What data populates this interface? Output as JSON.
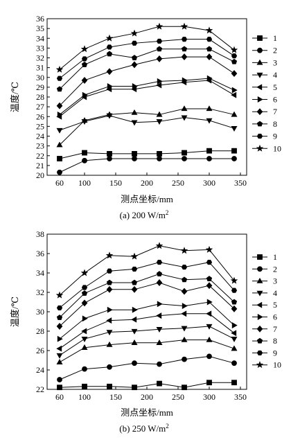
{
  "chart_data": [
    {
      "type": "line",
      "caption_prefix": "(a) 200 W/m",
      "caption_sup": "2",
      "xlabel": "测点坐标/mm",
      "ylabel": "温度/℃",
      "xlim": [
        40,
        360
      ],
      "ylim": [
        20,
        36
      ],
      "xticks": [
        60,
        100,
        150,
        200,
        250,
        300,
        350
      ],
      "yticks": [
        20,
        21,
        22,
        23,
        24,
        25,
        26,
        27,
        28,
        29,
        30,
        31,
        32,
        33,
        34,
        35,
        36
      ],
      "legend_position": "right",
      "x": [
        60,
        100,
        140,
        180,
        220,
        260,
        300,
        340
      ],
      "series": [
        {
          "name": "1",
          "marker": "square",
          "values": [
            21.7,
            22.3,
            22.2,
            22.2,
            22.2,
            22.3,
            22.5,
            22.5
          ]
        },
        {
          "name": "2",
          "marker": "circle",
          "values": [
            20.3,
            21.5,
            21.7,
            21.7,
            21.7,
            21.7,
            21.7,
            21.7
          ]
        },
        {
          "name": "3",
          "marker": "triangle-up",
          "values": [
            23.1,
            25.6,
            26.2,
            26.4,
            26.2,
            26.8,
            26.8,
            26.2
          ]
        },
        {
          "name": "4",
          "marker": "triangle-down",
          "values": [
            24.6,
            25.5,
            26.1,
            25.4,
            25.5,
            25.9,
            25.6,
            24.8
          ]
        },
        {
          "name": "5",
          "marker": "triangle-left",
          "values": [
            26.0,
            28.0,
            28.8,
            28.8,
            29.2,
            29.5,
            29.7,
            28.2
          ]
        },
        {
          "name": "6",
          "marker": "triangle-right",
          "values": [
            26.2,
            28.2,
            29.1,
            29.1,
            29.6,
            29.7,
            29.9,
            28.7
          ]
        },
        {
          "name": "7",
          "marker": "diamond",
          "values": [
            27.1,
            29.7,
            30.6,
            31.3,
            31.9,
            32.1,
            32.1,
            30.4
          ]
        },
        {
          "name": "8",
          "marker": "pentagon",
          "values": [
            28.8,
            31.3,
            32.4,
            32.0,
            32.9,
            32.9,
            32.9,
            31.6
          ]
        },
        {
          "name": "9",
          "marker": "hexagon",
          "values": [
            29.9,
            31.9,
            33.1,
            33.5,
            33.7,
            33.9,
            33.9,
            32.2
          ]
        },
        {
          "name": "10",
          "marker": "star",
          "values": [
            30.8,
            32.9,
            34.0,
            34.5,
            35.2,
            35.2,
            34.8,
            32.8
          ]
        }
      ]
    },
    {
      "type": "line",
      "caption_prefix": "(b) 250 W/m",
      "caption_sup": "2",
      "xlabel": "测点坐标/mm",
      "ylabel": "温度/℃",
      "xlim": [
        40,
        360
      ],
      "ylim": [
        22,
        38
      ],
      "xticks": [
        60,
        100,
        150,
        200,
        250,
        300,
        350
      ],
      "yticks": [
        22,
        24,
        26,
        28,
        30,
        32,
        34,
        36,
        38
      ],
      "legend_position": "right",
      "x": [
        60,
        100,
        140,
        180,
        220,
        260,
        300,
        340
      ],
      "series": [
        {
          "name": "1",
          "marker": "square",
          "values": [
            22.2,
            22.3,
            22.3,
            22.2,
            22.6,
            22.2,
            22.7,
            22.7
          ]
        },
        {
          "name": "2",
          "marker": "circle",
          "values": [
            23.0,
            24.1,
            24.3,
            24.7,
            24.6,
            25.1,
            25.4,
            24.7
          ]
        },
        {
          "name": "3",
          "marker": "triangle-up",
          "values": [
            24.8,
            26.3,
            26.6,
            26.8,
            26.8,
            27.1,
            27.1,
            26.2
          ]
        },
        {
          "name": "4",
          "marker": "triangle-down",
          "values": [
            25.5,
            27.2,
            27.9,
            28.0,
            28.2,
            28.3,
            28.5,
            27.2
          ]
        },
        {
          "name": "5",
          "marker": "triangle-left",
          "values": [
            26.2,
            28.0,
            29.1,
            29.2,
            29.6,
            29.8,
            29.8,
            27.8
          ]
        },
        {
          "name": "6",
          "marker": "triangle-right",
          "values": [
            27.2,
            29.3,
            30.2,
            30.2,
            30.8,
            30.6,
            31.0,
            28.6
          ]
        },
        {
          "name": "7",
          "marker": "diamond",
          "values": [
            28.5,
            30.9,
            32.3,
            32.3,
            33.0,
            32.1,
            32.7,
            30.3
          ]
        },
        {
          "name": "8",
          "marker": "pentagon",
          "values": [
            29.4,
            31.9,
            33.0,
            33.0,
            33.9,
            33.3,
            33.4,
            31.0
          ]
        },
        {
          "name": "9",
          "marker": "hexagon",
          "values": [
            30.4,
            32.5,
            34.2,
            34.4,
            35.1,
            34.6,
            35.1,
            32.2
          ]
        },
        {
          "name": "10",
          "marker": "star",
          "values": [
            31.7,
            34.0,
            35.8,
            35.7,
            36.8,
            36.3,
            36.4,
            33.2
          ]
        }
      ]
    }
  ]
}
